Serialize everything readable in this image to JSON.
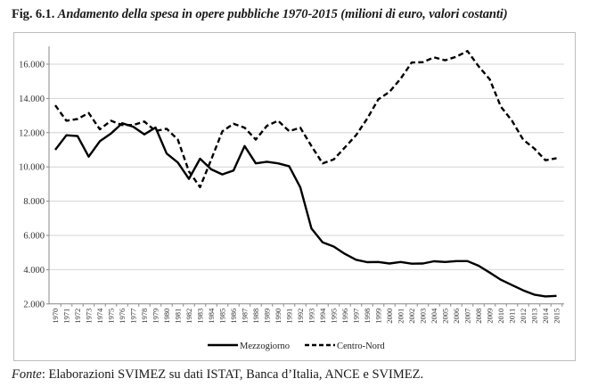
{
  "figure": {
    "number": "Fig. 6.1.",
    "caption": "Andamento della spesa in opere pubbliche 1970-2015 (milioni di euro, valori costanti)"
  },
  "source": {
    "label": "Fonte",
    "text": ": Elaborazioni SVIMEZ su dati ISTAT, Banca d’Italia, ANCE e SVIMEZ."
  },
  "chart_data": {
    "type": "line",
    "title": "Andamento della spesa in opere pubbliche 1970-2015 (milioni di euro, valori costanti)",
    "xlabel": "",
    "ylabel": "",
    "ylim": [
      2000,
      17000
    ],
    "yticks": [
      2000,
      4000,
      6000,
      8000,
      10000,
      12000,
      14000,
      16000
    ],
    "ytick_labels": [
      "2.000",
      "4.000",
      "6.000",
      "8.000",
      "10.000",
      "12.000",
      "14.000",
      "16.000"
    ],
    "grid": true,
    "legend_position": "bottom-center",
    "x": [
      1970,
      1971,
      1972,
      1973,
      1974,
      1975,
      1976,
      1977,
      1978,
      1979,
      1980,
      1981,
      1982,
      1983,
      1984,
      1985,
      1986,
      1987,
      1988,
      1989,
      1990,
      1991,
      1992,
      1993,
      1994,
      1995,
      1996,
      1997,
      1998,
      1999,
      2000,
      2001,
      2002,
      2003,
      2004,
      2005,
      2006,
      2007,
      2008,
      2009,
      2010,
      2011,
      2012,
      2013,
      2014,
      2015
    ],
    "series": [
      {
        "name": "Mezzogiorno",
        "style": "solid",
        "color": "#000000",
        "values": [
          11000,
          11850,
          11800,
          10600,
          11500,
          11950,
          12550,
          12350,
          11900,
          12300,
          10780,
          10260,
          9300,
          10480,
          9860,
          9560,
          9790,
          11220,
          10210,
          10300,
          10210,
          10040,
          8800,
          6400,
          5600,
          5350,
          4920,
          4580,
          4440,
          4450,
          4360,
          4450,
          4350,
          4360,
          4490,
          4450,
          4500,
          4500,
          4230,
          3830,
          3410,
          3100,
          2790,
          2540,
          2440,
          2470
        ]
      },
      {
        "name": "Centro-Nord",
        "style": "dashed",
        "color": "#000000",
        "values": [
          13600,
          12700,
          12800,
          13150,
          12200,
          12700,
          12450,
          12450,
          12650,
          12100,
          12230,
          11600,
          9740,
          8820,
          10430,
          12080,
          12520,
          12290,
          11600,
          12400,
          12700,
          12090,
          12290,
          11220,
          10210,
          10440,
          11140,
          11850,
          12820,
          13950,
          14380,
          15150,
          16100,
          16120,
          16400,
          16230,
          16440,
          16770,
          15880,
          15120,
          13520,
          12700,
          11600,
          11080,
          10390,
          10510
        ]
      }
    ]
  }
}
